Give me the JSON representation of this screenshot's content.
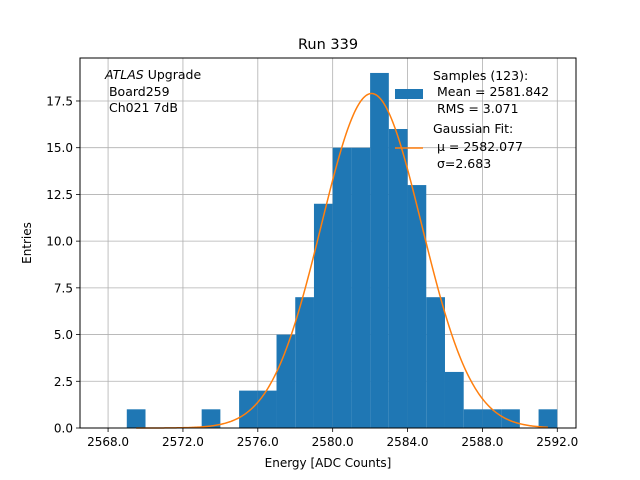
{
  "chart_data": {
    "type": "bar",
    "title": "Run 339",
    "xlabel": "Energy [ADC Counts]",
    "ylabel": "Entries",
    "xlim": [
      2566.5,
      2593.0
    ],
    "ylim": [
      0,
      19.8
    ],
    "grid": true,
    "x_ticks": [
      "2568.0",
      "2572.0",
      "2576.0",
      "2580.0",
      "2584.0",
      "2588.0",
      "2592.0"
    ],
    "x_tick_values": [
      2568,
      2572,
      2576,
      2580,
      2584,
      2588,
      2592
    ],
    "y_ticks": [
      "0.0",
      "2.5",
      "5.0",
      "7.5",
      "10.0",
      "12.5",
      "15.0",
      "17.5"
    ],
    "y_tick_values": [
      0,
      2.5,
      5,
      7.5,
      10,
      12.5,
      15,
      17.5
    ],
    "bin_edges": [
      2569,
      2570,
      2571,
      2572,
      2573,
      2574,
      2575,
      2576,
      2577,
      2578,
      2579,
      2580,
      2581,
      2582,
      2583,
      2584,
      2585,
      2586,
      2587,
      2588,
      2589,
      2590,
      2591,
      2592
    ],
    "values": [
      1,
      0,
      0,
      0,
      1,
      0,
      2,
      2,
      5,
      7,
      12,
      15,
      15,
      19,
      16,
      13,
      7,
      3,
      1,
      1,
      1,
      0,
      1
    ],
    "fit": {
      "mu": 2582.077,
      "sigma": 2.683,
      "amplitude": 17.9
    },
    "annotation": {
      "italic": "ATLAS",
      "rest": " Upgrade",
      "line2": " Board259",
      "line3": " Ch021 7dB"
    },
    "legend": {
      "placement": "top-right",
      "samples": [
        "Samples (123):",
        " Mean = 2581.842",
        " RMS = 3.071"
      ],
      "fit": [
        "Gaussian Fit:",
        " μ = 2582.077",
        " σ=2.683"
      ]
    },
    "colors": {
      "bars": "#1f77b4",
      "fit": "#ff7f0e",
      "grid": "#b0b0b0"
    }
  }
}
